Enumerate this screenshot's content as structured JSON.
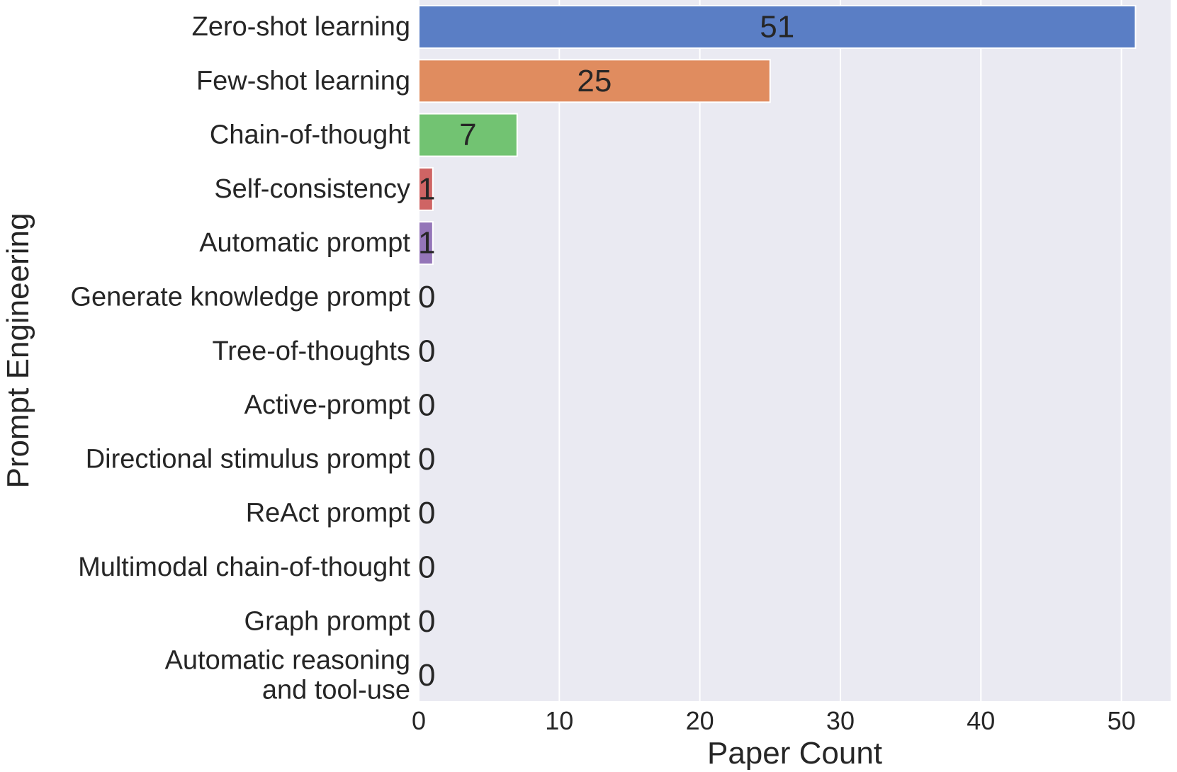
{
  "chart_data": {
    "type": "bar",
    "orientation": "horizontal",
    "categories": [
      "Zero-shot learning",
      "Few-shot learning",
      "Chain-of-thought",
      "Self-consistency",
      "Automatic prompt",
      "Generate knowledge prompt",
      "Tree-of-thoughts",
      "Active-prompt",
      "Directional stimulus prompt",
      "ReAct prompt",
      "Multimodal chain-of-thought",
      "Graph prompt",
      [
        "Automatic reasoning",
        "and tool-use"
      ]
    ],
    "values": [
      51,
      25,
      7,
      1,
      1,
      0,
      0,
      0,
      0,
      0,
      0,
      0,
      0
    ],
    "value_labels": [
      "51",
      "25",
      "7",
      "1",
      "1",
      "0",
      "0",
      "0",
      "0",
      "0",
      "0",
      "0",
      "0"
    ],
    "colors": [
      "#5a7ec5",
      "#e08c5f",
      "#72c372",
      "#cf6464",
      "#9475b8",
      "#8d6e5e",
      "#d987c2",
      "#8c8c8c",
      "#cbc46e",
      "#6ac3d3",
      "#5a7ec5",
      "#e08c5f",
      "#72c372"
    ],
    "xlabel": "Paper Count",
    "ylabel": "Prompt Engineering",
    "xlim": [
      0,
      53.5
    ],
    "xticks": [
      0,
      10,
      20,
      30,
      40,
      50
    ],
    "xtick_labels": [
      "0",
      "10",
      "20",
      "30",
      "40",
      "50"
    ],
    "grid": "vertical",
    "background": "#eaeaf2",
    "grid_color": "#ffffff"
  }
}
